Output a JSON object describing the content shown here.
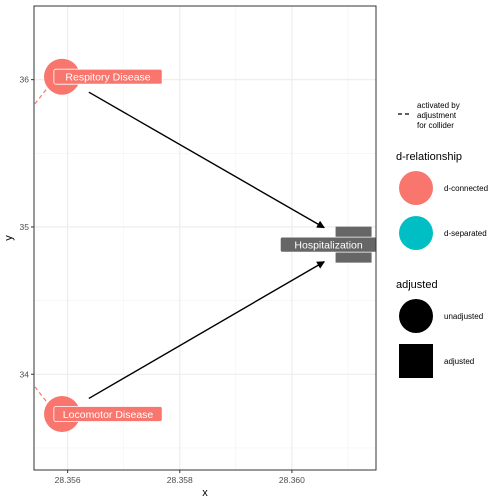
{
  "chart_data": {
    "type": "dag",
    "xlabel": "x",
    "ylabel": "y",
    "xlim": [
      28.3554,
      28.3615
    ],
    "ylim": [
      33.35,
      36.5
    ],
    "x_ticks": [
      {
        "value": 28.356,
        "label": "28.356"
      },
      {
        "value": 28.358,
        "label": "28.358"
      },
      {
        "value": 28.36,
        "label": "28.360"
      }
    ],
    "y_ticks": [
      {
        "value": 34,
        "label": "34"
      },
      {
        "value": 35,
        "label": "35"
      },
      {
        "value": 36,
        "label": "36"
      }
    ],
    "nodes": [
      {
        "id": "resp",
        "label": "Respitory Disease",
        "x": 28.3559,
        "y": 36.02,
        "d_relationship": "d-connected",
        "adjusted": "unadjusted"
      },
      {
        "id": "loco",
        "label": "Locomotor Disease",
        "x": 28.3559,
        "y": 33.73,
        "d_relationship": "d-connected",
        "adjusted": "unadjusted"
      },
      {
        "id": "hosp",
        "label": "Hospitalization",
        "x": 28.3611,
        "y": 34.88,
        "d_relationship": null,
        "adjusted": "adjusted"
      }
    ],
    "edges": [
      {
        "from": "resp",
        "to": "hosp",
        "style": "solid"
      },
      {
        "from": "loco",
        "to": "hosp",
        "style": "solid"
      }
    ],
    "collider_edges": [
      {
        "from": "resp",
        "to_direction": "left-down"
      },
      {
        "from": "loco",
        "to_direction": "left-up"
      }
    ],
    "legend": {
      "collider_label": "activated by adjustment for collider",
      "collider_lines": [
        "activated by",
        "adjustment",
        "for collider"
      ],
      "d_relationship_title": "d-relationship",
      "d_relationship_items": [
        {
          "label": "d-connected",
          "color": "#F8766D"
        },
        {
          "label": "d-separated",
          "color": "#00BFC4"
        }
      ],
      "adjusted_title": "adjusted",
      "adjusted_items": [
        {
          "label": "unadjusted",
          "shape": "circle"
        },
        {
          "label": "adjusted",
          "shape": "square"
        }
      ]
    },
    "colors": {
      "connected": "#F8766D",
      "separated": "#00BFC4",
      "adjusted_node": "#666666",
      "edge": "#000000"
    }
  }
}
